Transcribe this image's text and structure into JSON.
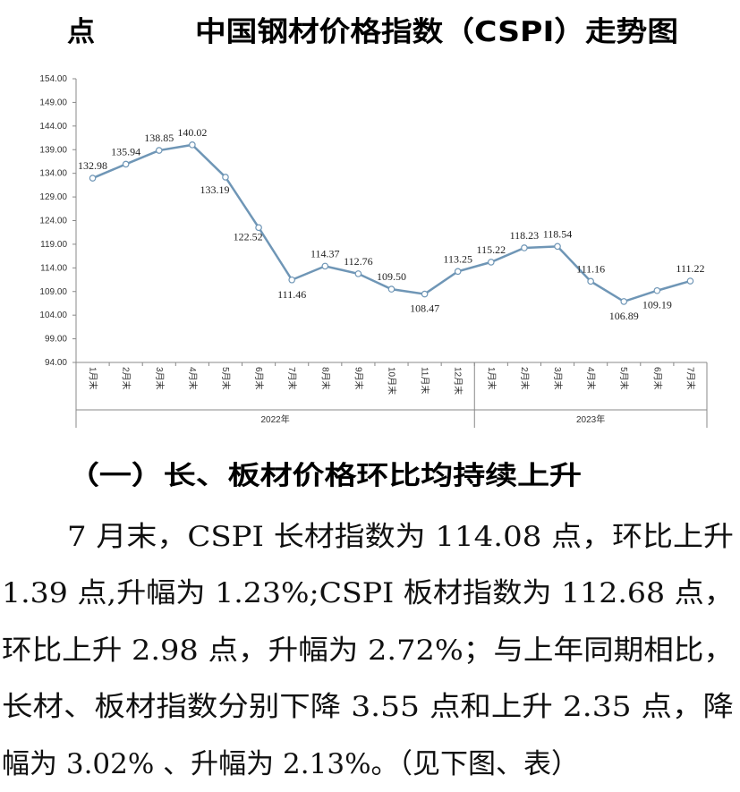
{
  "header": {
    "left": "点",
    "title": "中国钢材价格指数（CSPI）走势图"
  },
  "chart_data": {
    "type": "line",
    "categories": [
      "1月末",
      "2月末",
      "3月末",
      "4月末",
      "5月末",
      "6月末",
      "7月末",
      "8月末",
      "9月末",
      "10月末",
      "11月末",
      "12月末",
      "1月末",
      "2月末",
      "3月末",
      "4月末",
      "5月末",
      "6月末",
      "7月末"
    ],
    "groups": [
      {
        "label": "2022年",
        "count": 12
      },
      {
        "label": "2023年",
        "count": 7
      }
    ],
    "values": [
      132.98,
      135.94,
      138.85,
      140.02,
      133.19,
      122.52,
      111.46,
      114.37,
      112.76,
      109.5,
      108.47,
      113.25,
      115.22,
      118.23,
      118.54,
      111.16,
      106.89,
      109.19,
      111.22
    ],
    "value_labels": [
      "132.98",
      "135.94",
      "138.85",
      "140.02",
      "133.19",
      "122.52",
      "111.46",
      "114.37",
      "112.76",
      "109.50",
      "108.47",
      "113.25",
      "115.22",
      "118.23",
      "118.54",
      "111.16",
      "106.89",
      "109.19",
      "111.22"
    ],
    "color": "#6f96b6",
    "ylim": [
      94,
      154
    ],
    "yticks": [
      {
        "value": 94,
        "label": "94.00"
      },
      {
        "value": 99,
        "label": "99.00"
      },
      {
        "value": 104,
        "label": "104.00"
      },
      {
        "value": 109,
        "label": "109.00"
      },
      {
        "value": 114,
        "label": "114.00"
      },
      {
        "value": 119,
        "label": "119.00"
      },
      {
        "value": 124,
        "label": "124.00"
      },
      {
        "value": 129,
        "label": "129.00"
      },
      {
        "value": 134,
        "label": "134.00"
      },
      {
        "value": 139,
        "label": "139.00"
      },
      {
        "value": 144,
        "label": "144.00"
      },
      {
        "value": 149,
        "label": "149.00"
      },
      {
        "value": 154,
        "label": "154.00"
      }
    ],
    "grid": false
  },
  "section_heading": "（一）长、板材价格环比均持续上升",
  "paragraph_lines": [
    "7 月末，CSPI 长材指数为 114.08 点，环比上升",
    "1.39 点,升幅为 1.23%;CSPI 板材指数为 112.68 点，",
    "环比上升 2.98 点，升幅为 2.72%；与上年同期相比，",
    "长材、板材指数分别下降 3.55 点和上升 2.35 点，降",
    "幅为 3.02% 、升幅为 2.13%。（见下图、表）"
  ]
}
